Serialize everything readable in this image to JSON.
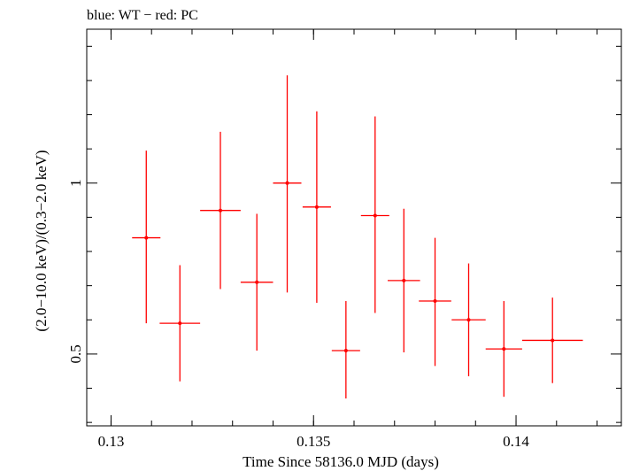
{
  "chart_data": {
    "type": "scatter",
    "title": "blue: WT − red: PC",
    "xlabel": "Time Since 58136.0 MJD (days)",
    "ylabel": "(2.0−10.0 keV)/(0.3−2.0 keV)",
    "xlim": [
      0.1294,
      0.1426
    ],
    "ylim": [
      0.29,
      1.45
    ],
    "x_ticks": [
      0.13,
      0.135,
      0.14
    ],
    "x_tick_labels": [
      "0.13",
      "0.135",
      "0.14"
    ],
    "y_ticks": [
      0.5,
      1.0
    ],
    "y_tick_labels": [
      "0.5",
      "1"
    ],
    "y_minor_ticks": [
      0.3,
      0.4,
      0.6,
      0.7,
      0.8,
      0.9,
      1.1,
      1.2,
      1.3,
      1.4
    ],
    "x_minor_step": 0.001,
    "series": [
      {
        "color": "#ff0000",
        "points": [
          {
            "x": 0.13087,
            "y": 0.84,
            "xerr": 0.00035,
            "ylo": 0.59,
            "yhi": 1.095
          },
          {
            "x": 0.1317,
            "y": 0.59,
            "xerr": 0.0005,
            "ylo": 0.42,
            "yhi": 0.76
          },
          {
            "x": 0.1327,
            "y": 0.92,
            "xerr": 0.0005,
            "ylo": 0.69,
            "yhi": 1.15
          },
          {
            "x": 0.1336,
            "y": 0.71,
            "xerr": 0.0004,
            "ylo": 0.51,
            "yhi": 0.91
          },
          {
            "x": 0.13435,
            "y": 1.0,
            "xerr": 0.00035,
            "ylo": 0.68,
            "yhi": 1.315
          },
          {
            "x": 0.13508,
            "y": 0.93,
            "xerr": 0.00035,
            "ylo": 0.65,
            "yhi": 1.21
          },
          {
            "x": 0.1358,
            "y": 0.51,
            "xerr": 0.00035,
            "ylo": 0.37,
            "yhi": 0.655
          },
          {
            "x": 0.13652,
            "y": 0.905,
            "xerr": 0.00035,
            "ylo": 0.62,
            "yhi": 1.195
          },
          {
            "x": 0.13723,
            "y": 0.715,
            "xerr": 0.0004,
            "ylo": 0.505,
            "yhi": 0.925
          },
          {
            "x": 0.138,
            "y": 0.655,
            "xerr": 0.0004,
            "ylo": 0.465,
            "yhi": 0.84
          },
          {
            "x": 0.13883,
            "y": 0.6,
            "xerr": 0.00042,
            "ylo": 0.435,
            "yhi": 0.765
          },
          {
            "x": 0.1397,
            "y": 0.515,
            "xerr": 0.00045,
            "ylo": 0.375,
            "yhi": 0.655
          },
          {
            "x": 0.1409,
            "y": 0.54,
            "xerr": 0.00075,
            "ylo": 0.415,
            "yhi": 0.665
          }
        ]
      }
    ]
  }
}
